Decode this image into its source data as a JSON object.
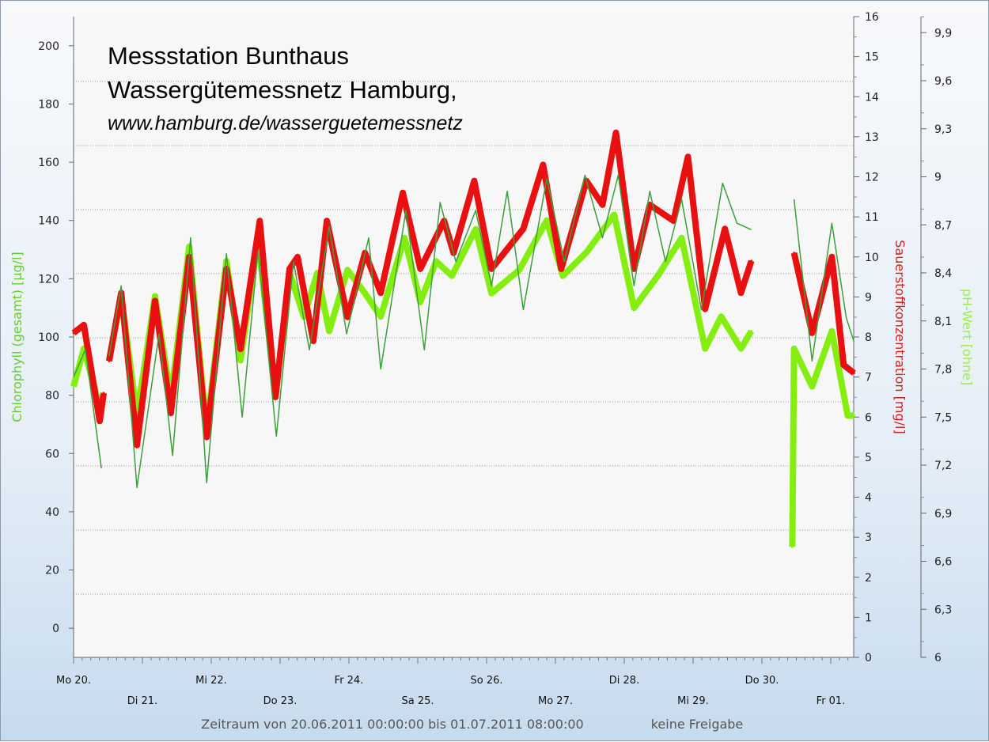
{
  "title": {
    "line1": "Messstation Bunthaus",
    "line2": "Wassergütemessnetz Hamburg,",
    "line3": "www.hamburg.de/wasserguetemessnetz"
  },
  "footer": {
    "period": "Zeitraum von 20.06.2011 00:00:00 bis 01.07.2011 08:00:00",
    "status": "keine Freigabe"
  },
  "chart_data": {
    "type": "line",
    "x_unit": "hours since 20.06.2011 00:00",
    "xlim": [
      0,
      272
    ],
    "x_tick_labels": [
      "Mo 20.",
      "Di 21.",
      "Mi 22.",
      "Do 23.",
      "Fr 24.",
      "Sa 25.",
      "So 26.",
      "Mo 27.",
      "Di 28.",
      "Mi 29.",
      "Do 30.",
      "Fr 01."
    ],
    "axes": {
      "left": {
        "label": "Chlorophyll (gesamt) [µg/l]",
        "ylim": [
          -10,
          210
        ],
        "ticks": [
          0,
          20,
          40,
          60,
          80,
          100,
          120,
          140,
          160,
          180,
          200
        ],
        "color": "#66cc33"
      },
      "right1": {
        "label": "Sauerstoffkonzentration [mg/l]",
        "ylim": [
          0,
          16
        ],
        "ticks": [
          0,
          1,
          2,
          3,
          4,
          5,
          6,
          7,
          8,
          9,
          10,
          11,
          12,
          13,
          14,
          15,
          16
        ],
        "color": "#cc2222"
      },
      "right2": {
        "label": "pH-Wert [ohne]",
        "ylim": [
          6,
          10
        ],
        "ticks": [
          "6",
          "6,3",
          "6,6",
          "6,9",
          "7,2",
          "7,5",
          "7,8",
          "8,1",
          "8,4",
          "8,7",
          "9",
          "9,3",
          "9,6",
          "9,9"
        ],
        "color": "#99ee44"
      }
    },
    "series": [
      {
        "name": "Chlorophyll (gesamt)",
        "axis": "left",
        "color": "#84ee10",
        "points": [
          [
            0,
            83
          ],
          [
            3.6,
            96
          ],
          [
            9.1,
            76
          ],
          [
            10.5,
            null
          ],
          [
            12.4,
            92
          ],
          [
            16.6,
            114
          ],
          [
            22.1,
            73
          ],
          [
            28.4,
            114
          ],
          [
            33.9,
            79
          ],
          [
            40.3,
            131
          ],
          [
            46.4,
            68
          ],
          [
            53.3,
            126
          ],
          [
            58.2,
            92
          ],
          [
            64.3,
            134
          ],
          [
            70.4,
            80
          ],
          [
            75.3,
            122
          ],
          [
            80.3,
            107
          ],
          [
            85,
            122
          ],
          [
            89.1,
            102
          ],
          [
            95.5,
            123
          ],
          [
            101.6,
            115
          ],
          [
            107.1,
            107
          ],
          [
            115.4,
            134
          ],
          [
            120.9,
            112
          ],
          [
            126.4,
            126
          ],
          [
            131.9,
            121
          ],
          [
            140.2,
            137
          ],
          [
            145.7,
            115
          ],
          [
            155.4,
            123
          ],
          [
            165,
            140
          ],
          [
            170.6,
            121
          ],
          [
            178.8,
            129
          ],
          [
            188.5,
            142
          ],
          [
            195.4,
            110
          ],
          [
            203.7,
            121
          ],
          [
            212,
            134
          ],
          [
            220.2,
            96
          ],
          [
            225.8,
            107
          ],
          [
            232.7,
            96
          ],
          [
            236.3,
            102
          ],
          [
            240,
            null
          ],
          [
            250.6,
            28
          ],
          [
            251.2,
            96
          ],
          [
            257.5,
            83
          ],
          [
            264.4,
            102
          ],
          [
            269.9,
            73
          ],
          [
            272.1,
            73
          ]
        ]
      },
      {
        "name": "Sauerstoffkonzentration",
        "axis": "right1",
        "color": "#e81010",
        "points": [
          [
            0,
            8.1
          ],
          [
            3.6,
            8.3
          ],
          [
            9.1,
            5.9
          ],
          [
            10.5,
            6.6
          ],
          [
            11,
            null
          ],
          [
            12.4,
            7.4
          ],
          [
            16.6,
            9.1
          ],
          [
            22.1,
            5.3
          ],
          [
            28.4,
            8.9
          ],
          [
            33.9,
            6.1
          ],
          [
            40.3,
            10.0
          ],
          [
            46.4,
            5.5
          ],
          [
            53.3,
            9.7
          ],
          [
            58.2,
            7.7
          ],
          [
            64.9,
            10.9
          ],
          [
            70.4,
            6.5
          ],
          [
            75.3,
            9.7
          ],
          [
            78.1,
            10.0
          ],
          [
            83.6,
            7.9
          ],
          [
            88.3,
            10.9
          ],
          [
            95.5,
            8.5
          ],
          [
            101.6,
            10.1
          ],
          [
            107.1,
            9.1
          ],
          [
            114.8,
            11.6
          ],
          [
            120.9,
            9.7
          ],
          [
            129.2,
            10.9
          ],
          [
            132.5,
            10.1
          ],
          [
            139.7,
            11.9
          ],
          [
            145.7,
            9.7
          ],
          [
            156.8,
            10.7
          ],
          [
            163.7,
            12.3
          ],
          [
            170,
            9.7
          ],
          [
            178.8,
            11.9
          ],
          [
            184.4,
            11.3
          ],
          [
            189.1,
            13.1
          ],
          [
            195.4,
            9.7
          ],
          [
            200.9,
            11.3
          ],
          [
            209.2,
            10.9
          ],
          [
            214.2,
            12.5
          ],
          [
            220.2,
            8.7
          ],
          [
            227.1,
            10.7
          ],
          [
            232.7,
            9.1
          ],
          [
            236.3,
            9.9
          ],
          [
            240,
            null
          ],
          [
            251.2,
            10.1
          ],
          [
            257.5,
            8.1
          ],
          [
            264.4,
            10.0
          ],
          [
            268.5,
            7.3
          ],
          [
            272.1,
            7.1
          ]
        ]
      },
      {
        "name": "pH-Wert",
        "axis": "right2",
        "color": "#3e9e3e",
        "points": [
          [
            0,
            7.75
          ],
          [
            4.1,
            7.92
          ],
          [
            9.7,
            7.18
          ],
          [
            10.5,
            null
          ],
          [
            12.4,
            7.88
          ],
          [
            16.6,
            8.32
          ],
          [
            22.1,
            7.06
          ],
          [
            29.8,
            8.02
          ],
          [
            34.5,
            7.26
          ],
          [
            40.8,
            8.62
          ],
          [
            46.4,
            7.09
          ],
          [
            53.3,
            8.52
          ],
          [
            58.8,
            7.5
          ],
          [
            64.3,
            8.54
          ],
          [
            70.7,
            7.38
          ],
          [
            76.7,
            8.47
          ],
          [
            82.2,
            7.92
          ],
          [
            89.1,
            8.69
          ],
          [
            95.2,
            8.02
          ],
          [
            102.9,
            8.62
          ],
          [
            107.1,
            7.8
          ],
          [
            115.9,
            8.79
          ],
          [
            122.3,
            7.92
          ],
          [
            127.8,
            8.84
          ],
          [
            133.3,
            8.47
          ],
          [
            140.2,
            8.79
          ],
          [
            145.7,
            8.32
          ],
          [
            151.2,
            8.91
          ],
          [
            156.8,
            8.17
          ],
          [
            165,
            8.99
          ],
          [
            171.1,
            8.47
          ],
          [
            178.3,
            9.01
          ],
          [
            184.4,
            8.62
          ],
          [
            189.9,
            9.01
          ],
          [
            195.4,
            8.32
          ],
          [
            200.9,
            8.91
          ],
          [
            206.4,
            8.47
          ],
          [
            212,
            8.86
          ],
          [
            218.9,
            8.17
          ],
          [
            226.3,
            8.96
          ],
          [
            231.3,
            8.71
          ],
          [
            236.3,
            8.67
          ],
          [
            240,
            null
          ],
          [
            251.2,
            8.86
          ],
          [
            257.5,
            7.85
          ],
          [
            264.4,
            8.71
          ],
          [
            269.4,
            8.12
          ],
          [
            272.1,
            7.97
          ]
        ]
      }
    ]
  }
}
